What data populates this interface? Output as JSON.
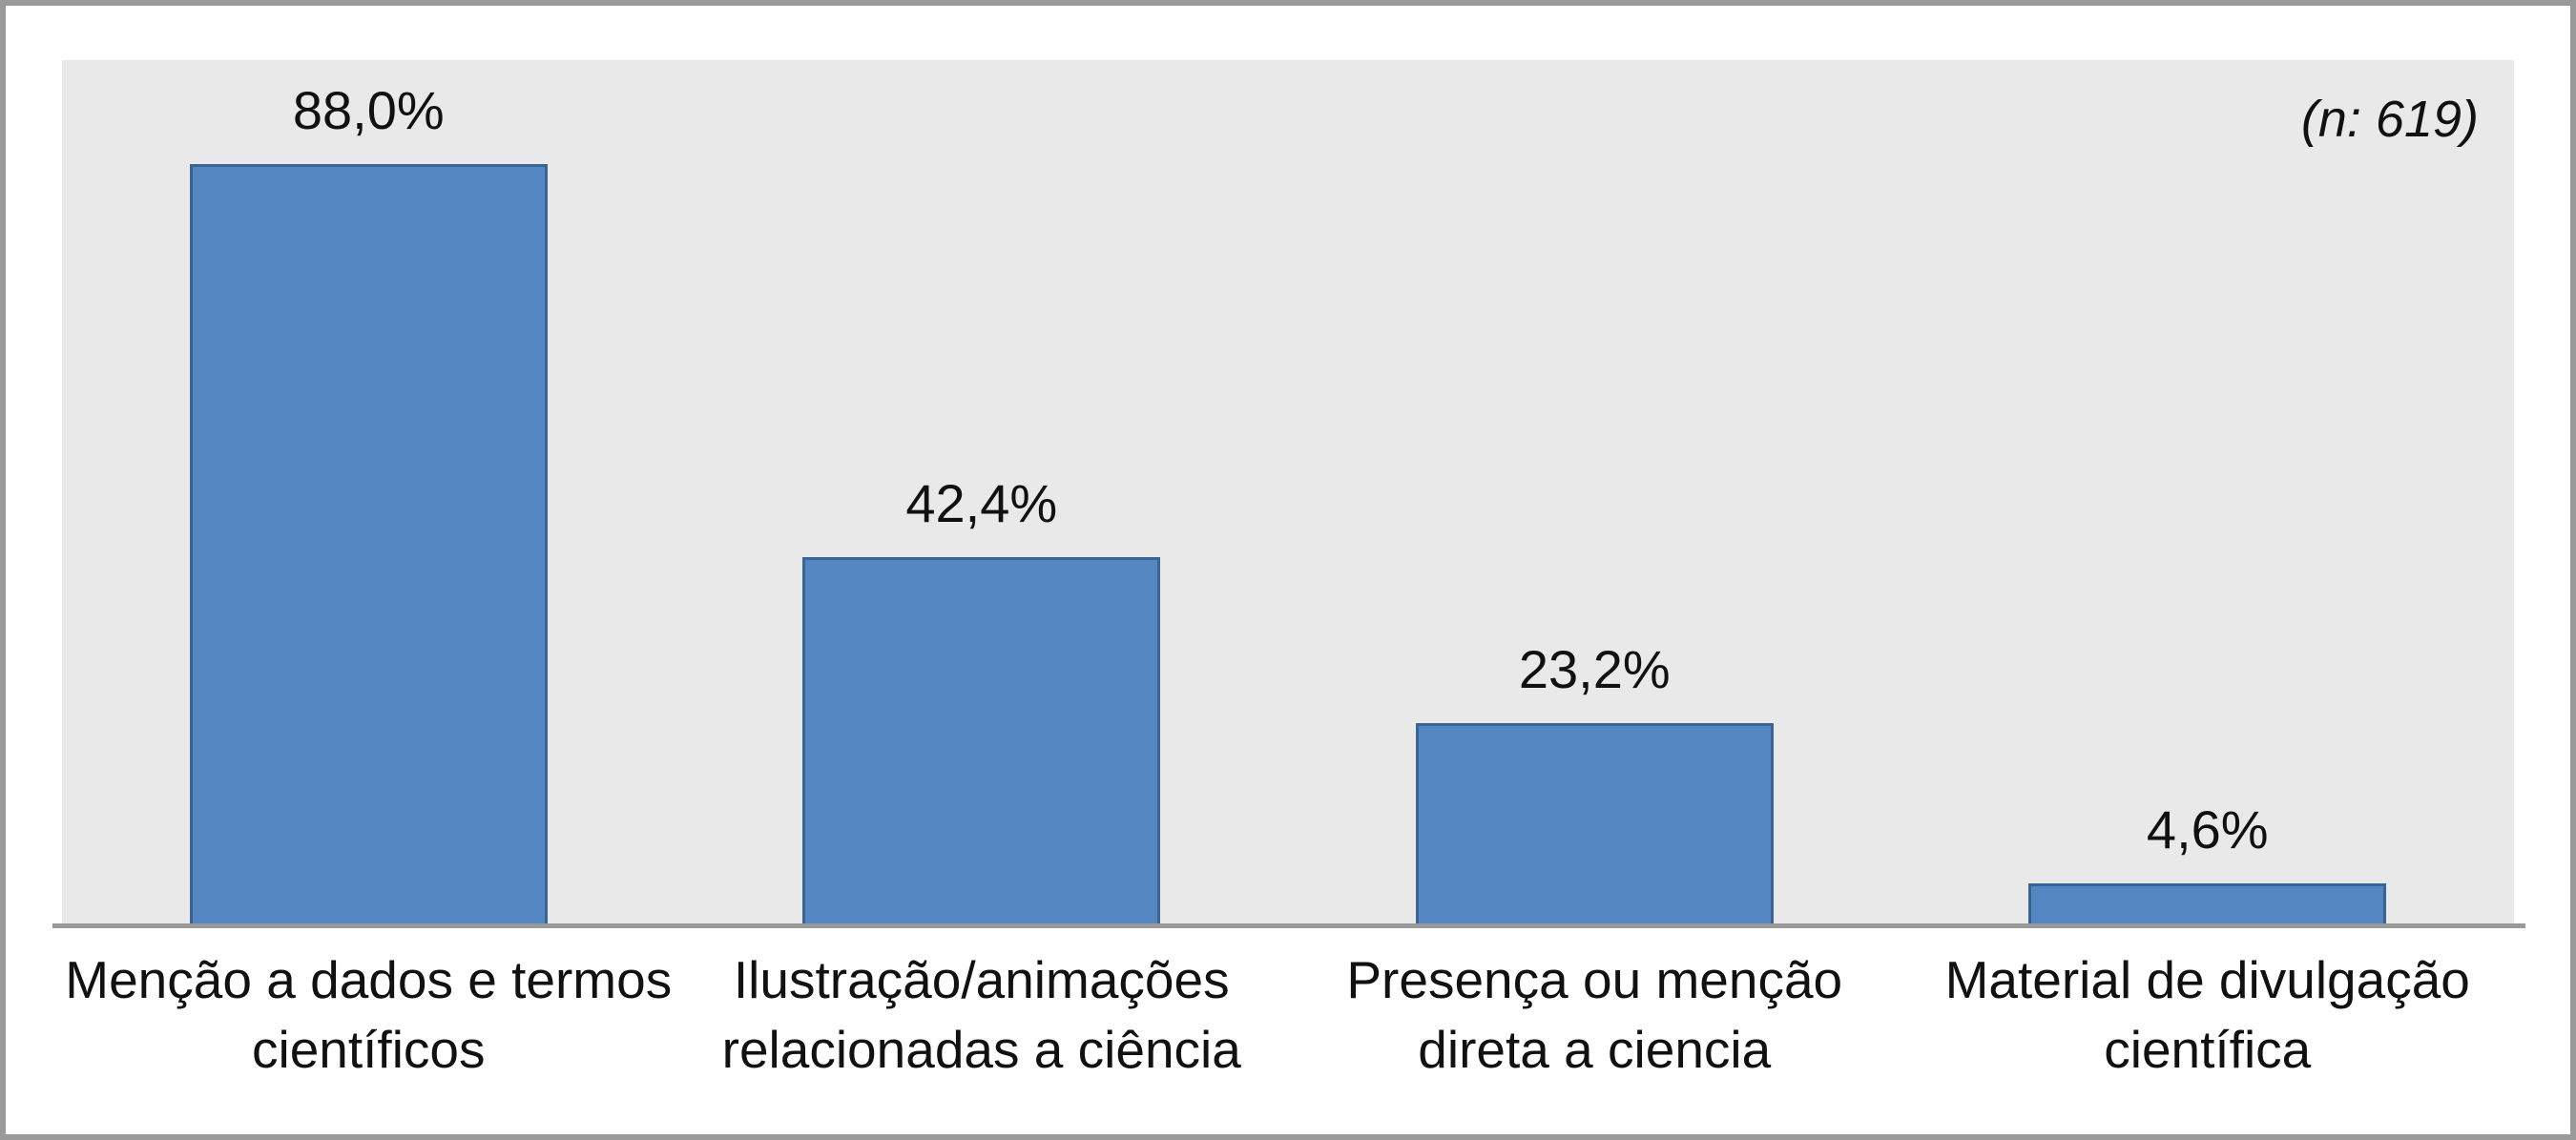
{
  "chart_data": {
    "type": "bar",
    "title": "",
    "xlabel": "",
    "ylabel": "",
    "ylim": [
      0,
      100
    ],
    "grid": false,
    "legend": "none",
    "annotation": "(n: 619)",
    "categories": [
      "Menção a dados e termos científicos",
      "Ilustração/animações relacionadas a ciência",
      "Presença ou menção direta a ciencia",
      "Material de divulgação científica"
    ],
    "category_lines": [
      "Menção a dados e termos\ncientíficos",
      "Ilustração/animações\nrelacionadas a ciência",
      "Presença ou menção\ndireta a ciencia",
      "Material de divulgação\ncientífica"
    ],
    "values": [
      88.0,
      42.4,
      23.2,
      4.6
    ],
    "value_labels": [
      "88,0%",
      "42,4%",
      "23,2%",
      "4,6%"
    ],
    "colors": {
      "bar_fill": "#5487C2",
      "bar_border": "#3A6493",
      "plot_bg": "#E9E9E9",
      "axis_line": "#9A9A9A",
      "frame_border": "#9A9A9A",
      "text": "#111111"
    }
  }
}
